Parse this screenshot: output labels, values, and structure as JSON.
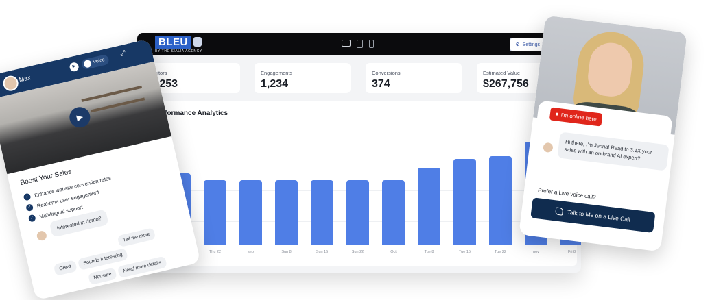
{
  "dashboard": {
    "brand": {
      "name": "BLEU",
      "tagline": "BY THE SIALIA AGENCY"
    },
    "settings_label": "Settings",
    "stats": [
      {
        "label": "Visitors",
        "value": "5,253"
      },
      {
        "label": "Engagements",
        "value": "1,234"
      },
      {
        "label": "Conversions",
        "value": "374"
      },
      {
        "label": "Estimated Value",
        "value": "$267,756"
      }
    ],
    "analytics_title": "Performance Analytics"
  },
  "chart_data": {
    "type": "bar",
    "title": "Performance Analytics",
    "categories": [
      "",
      "Thu 22",
      "sep",
      "Sun 8",
      "Sun 15",
      "Sun 22",
      "Oct",
      "Tue 8",
      "Tue 15",
      "Tue 22",
      "nov",
      "Fri 8"
    ],
    "values": [
      105,
      95,
      95,
      95,
      95,
      95,
      95,
      113,
      126,
      130,
      151,
      100
    ],
    "ylim": [
      0,
      170
    ],
    "grid": true,
    "colors": {
      "bar": "#4f7ee6"
    }
  },
  "left_widget": {
    "agent_name": "Max",
    "voice_label": "Voice",
    "heading": "Boost Your Sales",
    "bullets": [
      "Enhance website conversion rates",
      "Real-time user engagement",
      "Multilingual support"
    ],
    "message": "Interested in demo?",
    "chips": [
      "Great",
      "Sounds Interesting",
      "Tell me more",
      "Not sure",
      "Need more details"
    ]
  },
  "right_widget": {
    "status": "I'm online here",
    "message": "Hi there, I'm Jenna! Read to 3.1X your sales with an on-brand AI expert?",
    "prompt": "Prefer a Live voice call?",
    "call_label": "Talk to Me on a Live Call"
  }
}
